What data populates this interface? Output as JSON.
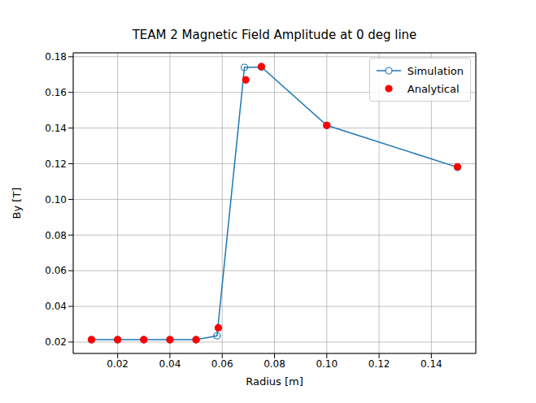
{
  "chart_data": {
    "type": "line",
    "title": "TEAM 2 Magnetic Field Amplitude at 0 deg line",
    "x_label": "Radius [m]",
    "y_label": "By [T]",
    "series": [
      {
        "name": "Simulation",
        "type": "line",
        "color": "#1f77b4",
        "marker": "open_circle",
        "line_style": "solid",
        "x": [
          0.01,
          0.02,
          0.03,
          0.04,
          0.05,
          0.058,
          0.0685,
          0.075,
          0.1,
          0.15
        ],
        "values": [
          0.0213,
          0.0213,
          0.0213,
          0.0213,
          0.0213,
          0.0235,
          0.174,
          0.1742,
          0.1415,
          0.118
        ]
      },
      {
        "name": "Analytical",
        "type": "scatter",
        "color": "#ff0000",
        "marker": "circle",
        "x": [
          0.01,
          0.02,
          0.03,
          0.04,
          0.05,
          0.0585,
          0.069,
          0.075,
          0.1,
          0.15
        ],
        "values": [
          0.0213,
          0.0213,
          0.0213,
          0.0213,
          0.0213,
          0.028,
          0.167,
          0.1745,
          0.1415,
          0.1183
        ]
      }
    ],
    "xlim": [
      0.003,
      0.157
    ],
    "ylim": [
      0.0136,
      0.1822
    ],
    "xticks": [
      0.02,
      0.04,
      0.06,
      0.08,
      {
        "value": 0.1,
        "label": "0.10"
      },
      0.12,
      0.14
    ],
    "yticks": [
      0.02,
      0.04,
      0.06,
      0.08,
      {
        "value": 0.1,
        "label": "0.10"
      },
      0.12,
      0.14,
      0.16,
      0.18
    ],
    "grid": true,
    "legend": "upper right"
  }
}
